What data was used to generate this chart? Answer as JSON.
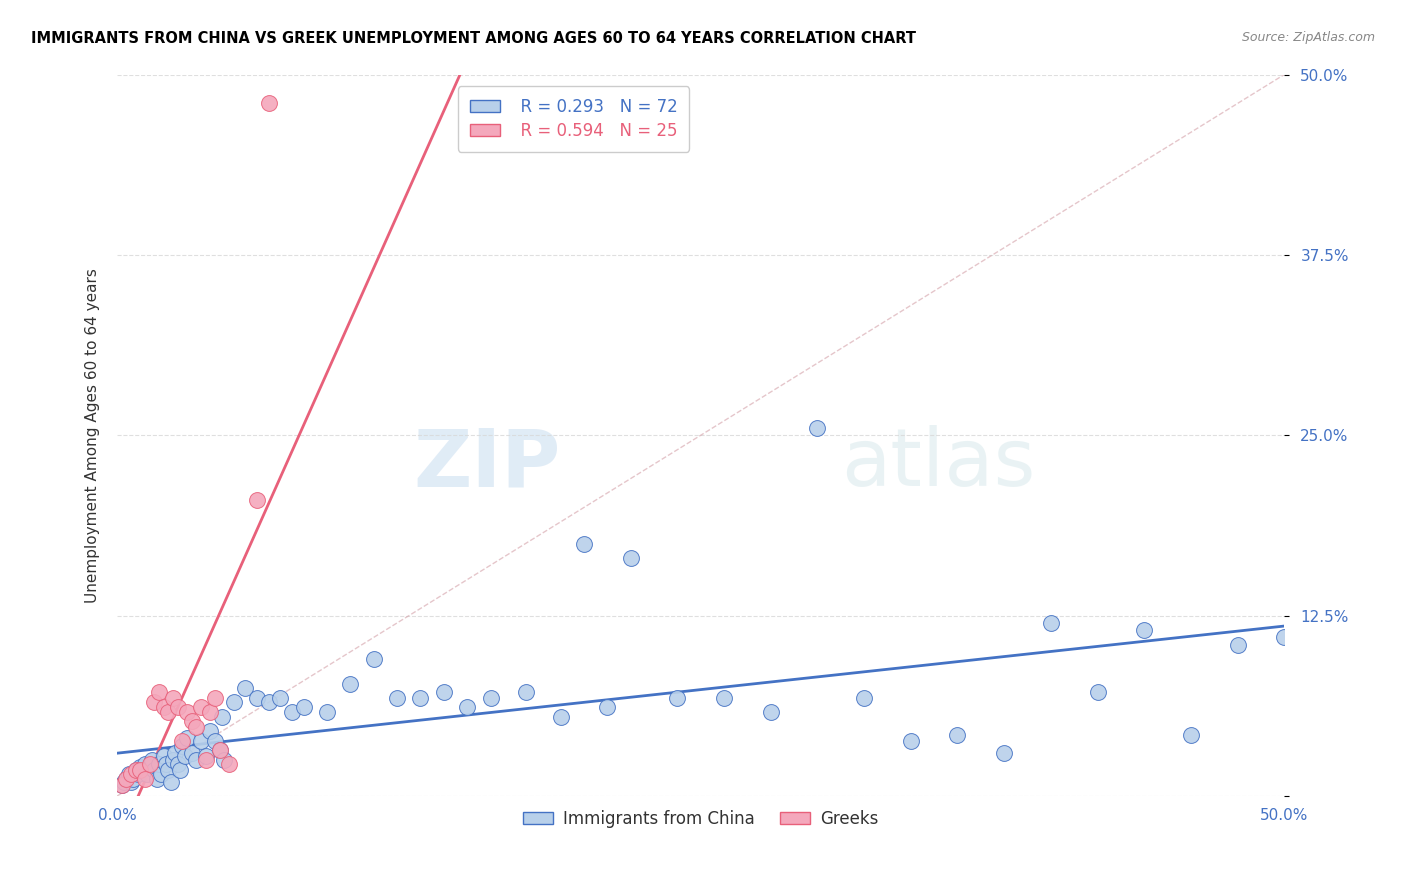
{
  "title": "IMMIGRANTS FROM CHINA VS GREEK UNEMPLOYMENT AMONG AGES 60 TO 64 YEARS CORRELATION CHART",
  "source": "Source: ZipAtlas.com",
  "ylabel": "Unemployment Among Ages 60 to 64 years",
  "xlim": [
    0.0,
    0.5
  ],
  "ylim": [
    0.0,
    0.5
  ],
  "yticks": [
    0.0,
    0.125,
    0.25,
    0.375,
    0.5
  ],
  "ytick_labels": [
    "",
    "12.5%",
    "25.0%",
    "37.5%",
    "50.0%"
  ],
  "xticks": [
    0.0,
    0.1,
    0.2,
    0.3,
    0.4,
    0.5
  ],
  "xtick_labels": [
    "0.0%",
    "",
    "",
    "",
    "",
    "50.0%"
  ],
  "blue_R": 0.293,
  "blue_N": 72,
  "pink_R": 0.594,
  "pink_N": 25,
  "blue_color": "#b8d0ea",
  "pink_color": "#f4a8bc",
  "blue_line_color": "#4472c4",
  "pink_line_color": "#e8607a",
  "diagonal_color": "#e0c0c8",
  "watermark_zip": "ZIP",
  "watermark_atlas": "atlas",
  "blue_scatter_x": [
    0.002,
    0.003,
    0.004,
    0.005,
    0.006,
    0.007,
    0.008,
    0.009,
    0.01,
    0.011,
    0.012,
    0.013,
    0.014,
    0.015,
    0.016,
    0.017,
    0.018,
    0.019,
    0.02,
    0.021,
    0.022,
    0.023,
    0.024,
    0.025,
    0.026,
    0.027,
    0.028,
    0.029,
    0.03,
    0.032,
    0.034,
    0.036,
    0.038,
    0.04,
    0.042,
    0.044,
    0.046,
    0.05,
    0.055,
    0.06,
    0.065,
    0.07,
    0.075,
    0.08,
    0.09,
    0.1,
    0.11,
    0.12,
    0.13,
    0.14,
    0.15,
    0.16,
    0.175,
    0.19,
    0.2,
    0.21,
    0.22,
    0.24,
    0.26,
    0.28,
    0.3,
    0.32,
    0.34,
    0.36,
    0.38,
    0.4,
    0.42,
    0.44,
    0.46,
    0.48,
    0.5,
    0.045
  ],
  "blue_scatter_y": [
    0.008,
    0.01,
    0.012,
    0.015,
    0.01,
    0.012,
    0.018,
    0.015,
    0.02,
    0.018,
    0.022,
    0.015,
    0.02,
    0.025,
    0.018,
    0.012,
    0.022,
    0.015,
    0.028,
    0.022,
    0.018,
    0.01,
    0.025,
    0.03,
    0.022,
    0.018,
    0.035,
    0.028,
    0.04,
    0.03,
    0.025,
    0.038,
    0.028,
    0.045,
    0.038,
    0.032,
    0.025,
    0.065,
    0.075,
    0.068,
    0.065,
    0.068,
    0.058,
    0.062,
    0.058,
    0.078,
    0.095,
    0.068,
    0.068,
    0.072,
    0.062,
    0.068,
    0.072,
    0.055,
    0.175,
    0.062,
    0.165,
    0.068,
    0.068,
    0.058,
    0.255,
    0.068,
    0.038,
    0.042,
    0.03,
    0.12,
    0.072,
    0.115,
    0.042,
    0.105,
    0.11,
    0.055
  ],
  "pink_scatter_x": [
    0.002,
    0.004,
    0.006,
    0.008,
    0.01,
    0.012,
    0.014,
    0.016,
    0.018,
    0.02,
    0.022,
    0.024,
    0.026,
    0.028,
    0.03,
    0.032,
    0.034,
    0.036,
    0.038,
    0.04,
    0.042,
    0.044,
    0.048,
    0.06,
    0.065
  ],
  "pink_scatter_y": [
    0.008,
    0.012,
    0.015,
    0.018,
    0.018,
    0.012,
    0.022,
    0.065,
    0.072,
    0.062,
    0.058,
    0.068,
    0.062,
    0.038,
    0.058,
    0.052,
    0.048,
    0.062,
    0.025,
    0.058,
    0.068,
    0.032,
    0.022,
    0.205,
    0.48
  ]
}
